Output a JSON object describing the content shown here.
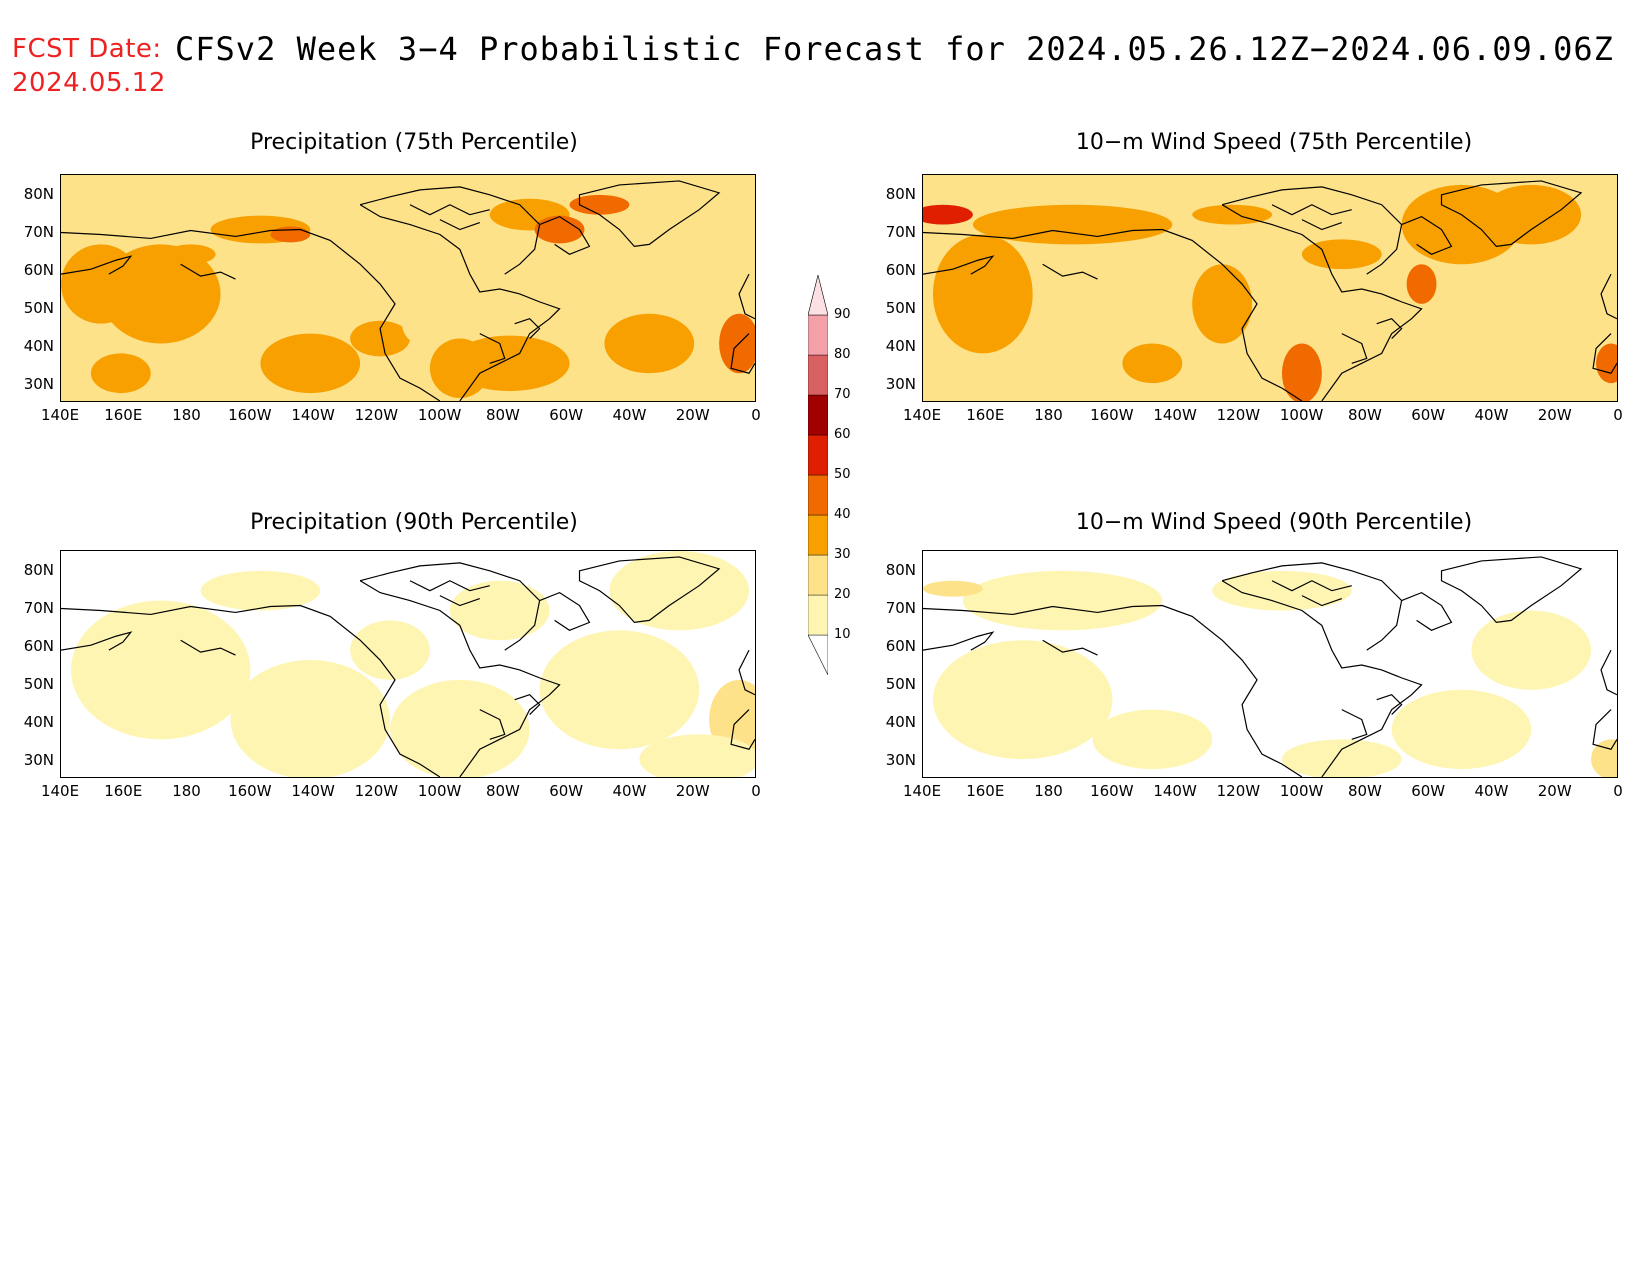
{
  "header": {
    "fcst_label": "FCST Date:",
    "fcst_date": "2024.05.12",
    "title": "CFSv2 Week 3−4 Probabilistic Forecast for 2024.05.26.12Z−2024.06.09.06Z"
  },
  "panels": [
    {
      "id": "precip75",
      "title": "Precipitation (75th Percentile)",
      "intensity": "high"
    },
    {
      "id": "wind75",
      "title": "10−m Wind Speed (75th Percentile)",
      "intensity": "high"
    },
    {
      "id": "precip90",
      "title": "Precipitation (90th Percentile)",
      "intensity": "low"
    },
    {
      "id": "wind90",
      "title": "10−m Wind Speed (90th Percentile)",
      "intensity": "low"
    }
  ],
  "lat_labels": [
    "80N",
    "70N",
    "60N",
    "50N",
    "40N",
    "30N"
  ],
  "lon_labels": [
    "140E",
    "160E",
    "180",
    "160W",
    "140W",
    "120W",
    "100W",
    "80W",
    "60W",
    "40W",
    "20W",
    "0"
  ],
  "colorbar": {
    "levels": [
      "10",
      "20",
      "30",
      "40",
      "50",
      "60",
      "70",
      "80",
      "90"
    ],
    "colors": [
      "#fff5b3",
      "#fde28a",
      "#f8a000",
      "#f06a00",
      "#e01e00",
      "#a00000",
      "#d96060",
      "#f4a0a8",
      "#fde0e3"
    ]
  }
}
